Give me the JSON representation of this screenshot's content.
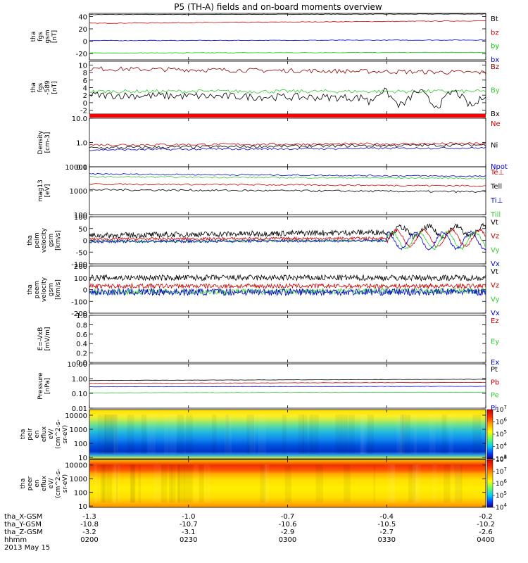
{
  "title": "P5 (TH-A) fields and on-board moments overview",
  "colors": {
    "black": "#000000",
    "red": "#cc0000",
    "darkred": "#8b0000",
    "green": "#00cc00",
    "blue": "#0000cc",
    "lime": "#33cc33"
  },
  "chart_data": [
    {
      "type": "line",
      "id": "fgs",
      "ylabel": [
        "tha",
        "fgs",
        "gsm",
        "[nT]"
      ],
      "ylim": [
        -30,
        45
      ],
      "yticks": [
        40,
        20,
        0,
        -20
      ],
      "series": [
        {
          "name": "Bt",
          "color": "#000000",
          "y_start": 43,
          "y_end": 44,
          "noise": 0.4
        },
        {
          "name": "bz",
          "color": "#cc0000",
          "y_start": 29,
          "y_end": 33,
          "noise": 0.5
        },
        {
          "name": "by",
          "color": "#00cc00",
          "y_start": -19,
          "y_end": -18,
          "noise": 0.4
        },
        {
          "name": "bx",
          "color": "#0000cc",
          "y_start": 1,
          "y_end": 2,
          "noise": 0.5
        }
      ]
    },
    {
      "type": "line",
      "id": "fgs-dsl",
      "ylabel": [
        "tha",
        "fgs",
        "-589",
        "[nT]"
      ],
      "ylim": [
        -3,
        11
      ],
      "yticks": [
        10,
        8,
        6,
        4,
        2,
        0,
        -2
      ],
      "series": [
        {
          "name": "Bz",
          "color": "#8b0000",
          "y_start": 9,
          "y_end": 8,
          "noise": 0.6
        },
        {
          "name": "By",
          "color": "#33cc33",
          "y_start": 3,
          "y_end": 3,
          "noise": 0.5
        },
        {
          "name": "Bx",
          "color": "#000000",
          "y_start": 2,
          "y_end": 1,
          "noise": 1.0
        }
      ]
    },
    {
      "type": "line",
      "id": "density",
      "scale": "log",
      "ylabel": [
        "Density",
        "[cm-3]"
      ],
      "ylim": [
        0.1,
        10
      ],
      "yticks": [
        "10.0",
        "1.0",
        "0.1"
      ],
      "series": [
        {
          "name": "Ne",
          "color": "#cc0000",
          "y_start": 0.8,
          "y_end": 0.9,
          "noise": 0.05
        },
        {
          "name": "Ni",
          "color": "#000000",
          "y_start": 0.6,
          "y_end": 0.8,
          "noise": 0.06
        },
        {
          "name": "Npot",
          "color": "#0000cc",
          "y_start": 0.5,
          "y_end": 0.6,
          "noise": 0.04
        }
      ]
    },
    {
      "type": "line",
      "id": "temperature",
      "scale": "log",
      "ylabel": [
        "mag13",
        "[eV]"
      ],
      "ylim": [
        100,
        10000
      ],
      "yticks": [
        "10000",
        "1000",
        "100"
      ],
      "series": [
        {
          "name": "Te⊥",
          "color": "#cc0000",
          "y_start": 1900,
          "y_end": 1600,
          "noise": 0.03
        },
        {
          "name": "Tell",
          "color": "#000000",
          "y_start": 1100,
          "y_end": 900,
          "noise": 0.04
        },
        {
          "name": "Ti⊥",
          "color": "#0000cc",
          "y_start": 5000,
          "y_end": 4000,
          "noise": 0.03
        },
        {
          "name": "Till",
          "color": "#33cc33",
          "y_start": 3800,
          "y_end": 3300,
          "noise": 0.03
        }
      ]
    },
    {
      "type": "line",
      "id": "peim-vel",
      "ylabel": [
        "tha",
        "peim",
        "velocity",
        "gsm",
        "[km/s]"
      ],
      "ylim": [
        -100,
        100
      ],
      "yticks": [
        100,
        50,
        0,
        -50,
        -100
      ],
      "series": [
        {
          "name": "Vt",
          "color": "#000000",
          "y_start": 20,
          "y_end": 40,
          "noise": 12
        },
        {
          "name": "Vz",
          "color": "#cc0000",
          "y_start": 5,
          "y_end": 10,
          "noise": 6
        },
        {
          "name": "Vy",
          "color": "#33cc33",
          "y_start": -5,
          "y_end": 0,
          "noise": 5
        },
        {
          "name": "Vx",
          "color": "#0000cc",
          "y_start": -5,
          "y_end": 0,
          "noise": 6
        }
      ]
    },
    {
      "type": "line",
      "id": "peem-vel",
      "ylabel": [
        "tha",
        "peem",
        "velocity",
        "gsm",
        "[km/s]"
      ],
      "ylim": [
        -200,
        200
      ],
      "yticks": [
        200,
        100,
        0,
        -100,
        -200
      ],
      "series": [
        {
          "name": "Vt",
          "color": "#000000",
          "y_start": 100,
          "y_end": 100,
          "noise": 25
        },
        {
          "name": "Vz",
          "color": "#cc0000",
          "y_start": 30,
          "y_end": 30,
          "noise": 20
        },
        {
          "name": "Vy",
          "color": "#33cc33",
          "y_start": -20,
          "y_end": -10,
          "noise": 25
        },
        {
          "name": "Vx",
          "color": "#0000cc",
          "y_start": -20,
          "y_end": -20,
          "noise": 30
        }
      ]
    },
    {
      "type": "line",
      "id": "efield",
      "ylabel": [
        "E=-VxB",
        "[mV/m]"
      ],
      "ylim": [
        0,
        1
      ],
      "yticks": [
        "1.0",
        "0.8",
        "0.6",
        "0.4",
        "0.2",
        "0.0"
      ],
      "series": [
        {
          "name": "Ez",
          "color": "#cc0000"
        },
        {
          "name": "Ey",
          "color": "#33cc33"
        },
        {
          "name": "Ex",
          "color": "#0000cc"
        }
      ]
    },
    {
      "type": "line",
      "id": "pressure",
      "scale": "log",
      "ylabel": [
        "Pressure",
        "[nPa]"
      ],
      "ylim": [
        0.01,
        10
      ],
      "yticks": [
        "10.00",
        "1.00",
        "0.10",
        "0.01"
      ],
      "series": [
        {
          "name": "Pt",
          "color": "#000000",
          "y_start": 0.75,
          "y_end": 0.9,
          "noise": 0.01
        },
        {
          "name": "Pb",
          "color": "#cc0000",
          "y_start": 0.48,
          "y_end": 0.55,
          "noise": 0.01
        },
        {
          "name": "Pe",
          "color": "#33cc33",
          "y_start": 0.11,
          "y_end": 0.12,
          "noise": 0.01
        },
        {
          "name": "Pi",
          "color": "#0000cc",
          "y_start": 0.28,
          "y_end": 0.3,
          "noise": 0.01
        }
      ]
    },
    {
      "type": "heatmap",
      "id": "peir",
      "scale": "log",
      "ylabel": [
        "tha",
        "peir",
        "en",
        "eflux",
        "eV/",
        "(cm^2-s-",
        "sr-eV)"
      ],
      "ylim": [
        8,
        25000
      ],
      "yticks": [
        "10000",
        "1000",
        "100",
        "10"
      ],
      "colorbar": [
        "10^7",
        "10^6",
        "10^5",
        "10^4",
        "10^3"
      ],
      "cb_range": [
        3,
        7
      ]
    },
    {
      "type": "heatmap",
      "id": "peer",
      "scale": "log",
      "ylabel": [
        "tha",
        "peer",
        "en",
        "eflux",
        "eV/",
        "(cm^2-s-",
        "sr-eV)"
      ],
      "ylim": [
        8,
        25000
      ],
      "yticks": [
        "10000",
        "1000",
        "100",
        "10"
      ],
      "colorbar": [
        "10^8",
        "10^7",
        "10^6",
        "10^5",
        "10^4"
      ],
      "cb_range": [
        4,
        8
      ]
    }
  ],
  "xaxis": {
    "rows": [
      {
        "label": "tha_X-GSM",
        "values": [
          "-1.3",
          "-1.0",
          "-0.7",
          "-0.4",
          "-0.2"
        ]
      },
      {
        "label": "tha_Y-GSM",
        "values": [
          "-10.8",
          "-10.7",
          "-10.6",
          "-10.5",
          "-10.2"
        ]
      },
      {
        "label": "tha_Z-GSM",
        "values": [
          "-3.2",
          "-3.1",
          "-2.9",
          "-2.7",
          "-2.6"
        ]
      },
      {
        "label": "hhmm",
        "values": [
          "0200",
          "0230",
          "0300",
          "0330",
          "0400"
        ]
      }
    ],
    "date": "2013 May 15"
  }
}
